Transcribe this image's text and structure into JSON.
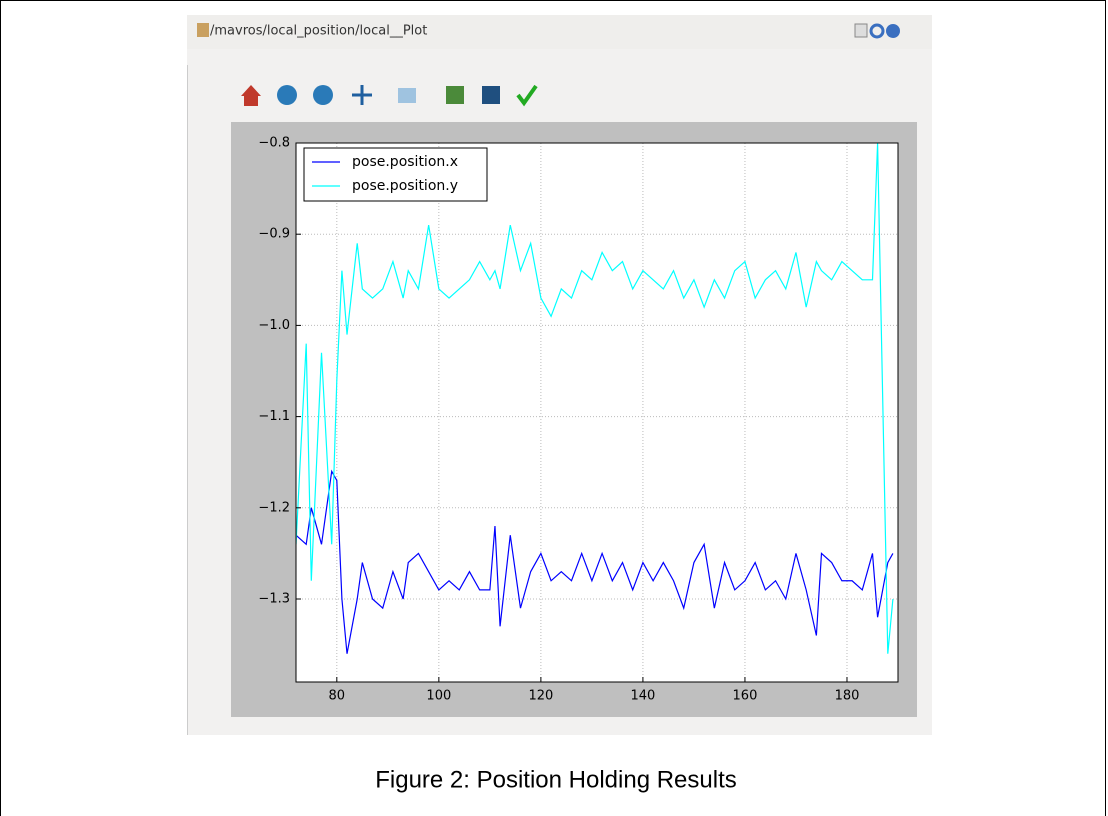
{
  "window_title": "/mavros/local_position/local__Plot",
  "caption": "Figure 2: Position Holding Results",
  "chart_data": {
    "type": "line",
    "x": [
      72,
      74,
      75,
      77,
      79,
      80,
      81,
      82,
      84,
      85,
      87,
      89,
      91,
      93,
      94,
      96,
      98,
      100,
      102,
      104,
      106,
      108,
      110,
      111,
      112,
      114,
      116,
      118,
      120,
      122,
      124,
      126,
      128,
      130,
      132,
      134,
      136,
      138,
      140,
      142,
      144,
      146,
      148,
      150,
      152,
      154,
      156,
      158,
      160,
      162,
      164,
      166,
      168,
      170,
      172,
      174,
      175,
      177,
      179,
      181,
      183,
      185,
      186,
      188,
      189
    ],
    "series": [
      {
        "name": "pose.position.x",
        "color": "#0000ff",
        "values": [
          -1.23,
          -1.24,
          -1.2,
          -1.24,
          -1.16,
          -1.17,
          -1.3,
          -1.36,
          -1.3,
          -1.26,
          -1.3,
          -1.31,
          -1.27,
          -1.3,
          -1.26,
          -1.25,
          -1.27,
          -1.29,
          -1.28,
          -1.29,
          -1.27,
          -1.29,
          -1.29,
          -1.22,
          -1.33,
          -1.23,
          -1.31,
          -1.27,
          -1.25,
          -1.28,
          -1.27,
          -1.28,
          -1.25,
          -1.28,
          -1.25,
          -1.28,
          -1.26,
          -1.29,
          -1.26,
          -1.28,
          -1.26,
          -1.28,
          -1.31,
          -1.26,
          -1.24,
          -1.31,
          -1.26,
          -1.29,
          -1.28,
          -1.26,
          -1.29,
          -1.28,
          -1.3,
          -1.25,
          -1.29,
          -1.34,
          -1.25,
          -1.26,
          -1.28,
          -1.28,
          -1.29,
          -1.25,
          -1.32,
          -1.26,
          -1.25
        ]
      },
      {
        "name": "pose.position.y",
        "color": "#00ffff",
        "values": [
          -1.24,
          -1.02,
          -1.28,
          -1.03,
          -1.24,
          -1.06,
          -0.94,
          -1.01,
          -0.91,
          -0.96,
          -0.97,
          -0.96,
          -0.93,
          -0.97,
          -0.94,
          -0.96,
          -0.89,
          -0.96,
          -0.97,
          -0.96,
          -0.95,
          -0.93,
          -0.95,
          -0.94,
          -0.96,
          -0.89,
          -0.94,
          -0.91,
          -0.97,
          -0.99,
          -0.96,
          -0.97,
          -0.94,
          -0.95,
          -0.92,
          -0.94,
          -0.93,
          -0.96,
          -0.94,
          -0.95,
          -0.96,
          -0.94,
          -0.97,
          -0.95,
          -0.98,
          -0.95,
          -0.97,
          -0.94,
          -0.93,
          -0.97,
          -0.95,
          -0.94,
          -0.96,
          -0.92,
          -0.98,
          -0.93,
          -0.94,
          -0.95,
          -0.93,
          -0.94,
          -0.95,
          -0.95,
          -0.8,
          -1.36,
          -1.3
        ]
      }
    ],
    "xlim": [
      72,
      190
    ],
    "ylim": [
      -1.391,
      -0.8
    ],
    "xticks": [
      80,
      100,
      120,
      140,
      160,
      180
    ],
    "yticks": [
      {
        "value": -1.3,
        "label": "−1.3"
      },
      {
        "value": -1.2,
        "label": "−1.2"
      },
      {
        "value": -1.1,
        "label": "−1.1"
      },
      {
        "value": -1.0,
        "label": "−1.0"
      },
      {
        "value": -0.9,
        "label": "−0.9"
      },
      {
        "value": -0.8,
        "label": "−0.8"
      }
    ],
    "grid": true,
    "legend": "upper left"
  }
}
